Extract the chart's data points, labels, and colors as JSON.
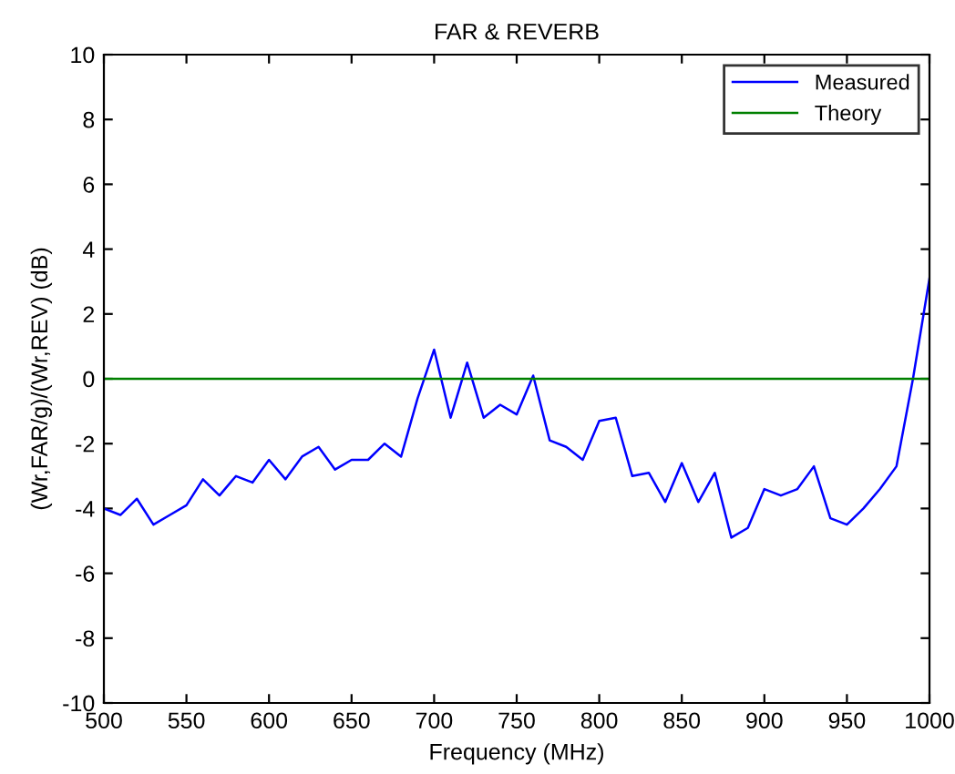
{
  "chart_data": {
    "type": "line",
    "title": "FAR & REVERB",
    "xlabel": "Frequency (MHz)",
    "ylabel": "(Wr,FAR/g)/(Wr,REV) (dB)",
    "xlim": [
      500,
      1000
    ],
    "ylim": [
      -10,
      10
    ],
    "xticks": [
      500,
      550,
      600,
      650,
      700,
      750,
      800,
      850,
      900,
      950,
      1000
    ],
    "yticks": [
      -10,
      -8,
      -6,
      -4,
      -2,
      0,
      2,
      4,
      6,
      8,
      10
    ],
    "legend": "top right",
    "grid": false,
    "series": [
      {
        "name": "Measured",
        "color": "#0000ff",
        "x": [
          500,
          510,
          520,
          530,
          540,
          550,
          560,
          570,
          580,
          590,
          600,
          610,
          620,
          630,
          640,
          650,
          660,
          670,
          680,
          690,
          700,
          710,
          720,
          730,
          740,
          750,
          760,
          770,
          780,
          790,
          800,
          810,
          820,
          830,
          840,
          850,
          860,
          870,
          880,
          890,
          900,
          910,
          920,
          930,
          940,
          950,
          960,
          970,
          980,
          990,
          1000
        ],
        "values": [
          -4.0,
          -4.2,
          -3.7,
          -4.5,
          -4.2,
          -3.9,
          -3.1,
          -3.6,
          -3.0,
          -3.2,
          -2.5,
          -3.1,
          -2.4,
          -2.1,
          -2.8,
          -2.5,
          -2.5,
          -2.0,
          -2.4,
          -0.6,
          0.9,
          -1.2,
          0.5,
          -1.2,
          -0.8,
          -1.1,
          0.1,
          -1.9,
          -2.1,
          -2.5,
          -1.3,
          -1.2,
          -3.0,
          -2.9,
          -3.8,
          -2.6,
          -3.8,
          -2.9,
          -4.9,
          -4.6,
          -3.4,
          -3.6,
          -3.4,
          -2.7,
          -4.3,
          -4.5,
          -4.0,
          -3.4,
          -2.7,
          0.0,
          3.1
        ]
      },
      {
        "name": "Theory",
        "color": "#008000",
        "x": [
          500,
          1000
        ],
        "values": [
          0,
          0
        ]
      }
    ]
  }
}
